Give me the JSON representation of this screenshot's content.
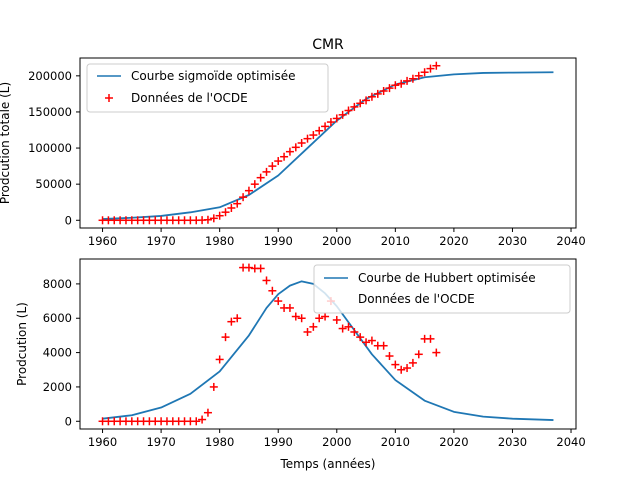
{
  "figure": {
    "title": "CMR",
    "xlabel": "Temps (années)"
  },
  "colors": {
    "curve": "#1f77b4",
    "points": "#ff0000",
    "axis": "#000000"
  },
  "chart_data": [
    {
      "type": "line",
      "title": "CMR",
      "xlabel": "",
      "ylabel": "Prodcution totale (L)",
      "xlim": [
        1956.15,
        2040.85
      ],
      "ylim": [
        -10700,
        224700
      ],
      "xticks": [
        1960,
        1970,
        1980,
        1990,
        2000,
        2010,
        2020,
        2030,
        2040
      ],
      "yticks": [
        0,
        50000,
        100000,
        150000,
        200000
      ],
      "ytick_labels": [
        "0",
        "50000",
        "100000",
        "150000",
        "200000"
      ],
      "legend_position": "top-left",
      "curve": {
        "name": "Courbe sigmoïde optimisée",
        "x": [
          1960,
          1965,
          1970,
          1975,
          1980,
          1985,
          1990,
          1995,
          2000,
          2005,
          2010,
          2015,
          2020,
          2025,
          2030,
          2037
        ],
        "y": [
          1700,
          3500,
          6000,
          11000,
          18000,
          35000,
          62000,
          100000,
          138000,
          168000,
          188000,
          198000,
          202000,
          204000,
          204500,
          205000
        ]
      },
      "points": {
        "name": "Données de l'OCDE",
        "x": [
          1960,
          1961,
          1962,
          1963,
          1964,
          1965,
          1966,
          1967,
          1968,
          1969,
          1970,
          1971,
          1972,
          1973,
          1974,
          1975,
          1976,
          1977,
          1978,
          1979,
          1980,
          1981,
          1982,
          1983,
          1984,
          1985,
          1986,
          1987,
          1988,
          1989,
          1990,
          1991,
          1992,
          1993,
          1994,
          1995,
          1996,
          1997,
          1998,
          1999,
          2000,
          2001,
          2002,
          2003,
          2004,
          2005,
          2006,
          2007,
          2008,
          2009,
          2010,
          2011,
          2012,
          2013,
          2014,
          2015,
          2016,
          2017
        ],
        "y": [
          0,
          0,
          0,
          0,
          0,
          0,
          0,
          0,
          0,
          0,
          0,
          0,
          0,
          0,
          0,
          0,
          0,
          200,
          700,
          2700,
          6300,
          11200,
          17000,
          23000,
          32000,
          41000,
          50000,
          59000,
          67000,
          75000,
          82000,
          88000,
          95000,
          101000,
          107000,
          113000,
          118000,
          124000,
          130000,
          136000,
          141000,
          146000,
          152000,
          157000,
          162000,
          166000,
          171000,
          175000,
          179000,
          183000,
          187000,
          189000,
          193000,
          196000,
          200000,
          205000,
          210000,
          214000
        ]
      }
    },
    {
      "type": "line",
      "title": "",
      "xlabel": "Temps (années)",
      "ylabel": "Prodcution (L)",
      "xlim": [
        1956.15,
        2040.85
      ],
      "ylim": [
        -450,
        9450
      ],
      "xticks": [
        1960,
        1970,
        1980,
        1990,
        2000,
        2010,
        2020,
        2030,
        2040
      ],
      "yticks": [
        0,
        2000,
        4000,
        6000,
        8000
      ],
      "ytick_labels": [
        "0",
        "2000",
        "4000",
        "6000",
        "8000"
      ],
      "legend_position": "top-right",
      "curve": {
        "name": "Courbe de Hubbert optimisée",
        "x": [
          1960,
          1965,
          1970,
          1975,
          1980,
          1985,
          1988,
          1990,
          1992,
          1994,
          1996,
          1998,
          2000,
          2003,
          2006,
          2010,
          2015,
          2020,
          2025,
          2030,
          2037
        ],
        "y": [
          150,
          350,
          800,
          1600,
          2900,
          5000,
          6600,
          7400,
          7900,
          8150,
          8000,
          7450,
          6700,
          5300,
          3900,
          2400,
          1200,
          550,
          270,
          150,
          70
        ]
      },
      "points": {
        "name": "Données de l'OCDE",
        "x": [
          1960,
          1961,
          1962,
          1963,
          1964,
          1965,
          1966,
          1967,
          1968,
          1969,
          1970,
          1971,
          1972,
          1973,
          1974,
          1975,
          1976,
          1977,
          1978,
          1979,
          1980,
          1981,
          1982,
          1983,
          1984,
          1985,
          1986,
          1987,
          1988,
          1989,
          1990,
          1991,
          1992,
          1993,
          1994,
          1995,
          1996,
          1997,
          1998,
          1999,
          2000,
          2001,
          2002,
          2003,
          2004,
          2005,
          2006,
          2007,
          2008,
          2009,
          2010,
          2011,
          2012,
          2013,
          2014,
          2015,
          2016,
          2017
        ],
        "y": [
          0,
          0,
          0,
          0,
          0,
          0,
          0,
          0,
          0,
          0,
          0,
          0,
          0,
          0,
          0,
          0,
          0,
          100,
          500,
          2000,
          3600,
          4900,
          5800,
          6000,
          8950,
          8950,
          8900,
          8900,
          8200,
          7600,
          7000,
          6600,
          6600,
          6100,
          6000,
          5200,
          5500,
          6000,
          6100,
          7000,
          5900,
          5400,
          5500,
          5200,
          4900,
          4600,
          4700,
          4400,
          4400,
          3800,
          3300,
          3000,
          3100,
          3400,
          3900,
          4800,
          4800,
          4000
        ]
      }
    }
  ]
}
